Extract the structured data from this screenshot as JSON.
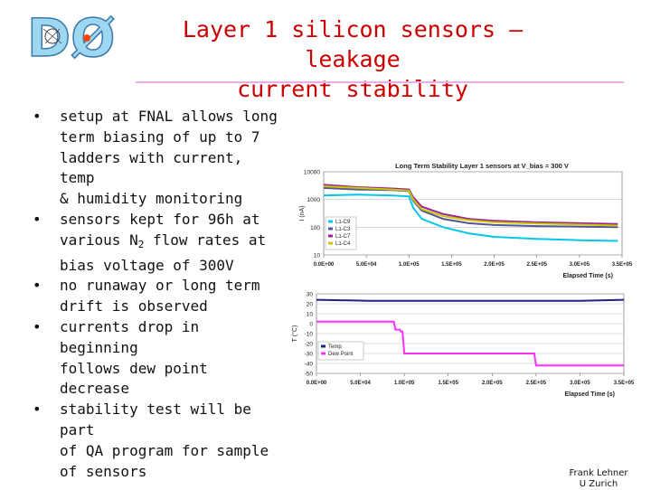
{
  "logo": {
    "text": "DØ"
  },
  "title": {
    "line1": "Layer 1 silicon sensors – leakage",
    "line2": "current stability"
  },
  "bullets": [
    {
      "lines": [
        "setup at FNAL allows long",
        "term biasing of up to 7",
        "ladders with current, temp",
        "& humidity monitoring"
      ]
    },
    {
      "lines": [
        "sensors kept for 96h at",
        "various N|2| flow rates at",
        "bias voltage of 300V"
      ]
    },
    {
      "lines": [
        "no runaway or long term",
        "drift is observed"
      ]
    },
    {
      "lines": [
        "currents drop in beginning",
        "follows dew point decrease"
      ]
    },
    {
      "lines": [
        "stability test will be part",
        "of QA program for sample",
        "of sensors"
      ]
    }
  ],
  "chart_data": [
    {
      "type": "line",
      "title": "Long Term Stability Layer 1 sensors at V_bias = 300 V",
      "xlabel": "Elapsed Time (s)",
      "ylabel": "I (nA)",
      "yscale": "log",
      "ylim": [
        10,
        10000
      ],
      "yticks": [
        "10",
        "100",
        "1000",
        "10000"
      ],
      "xlim": [
        0,
        350000
      ],
      "xticks": [
        "0.0E+00",
        "5.0E+04",
        "1.0E+05",
        "1.5E+05",
        "2.0E+05",
        "2.5E+05",
        "3.0E+05",
        "3.5E+05"
      ],
      "legend_position": "left",
      "series": [
        {
          "name": "L1-C9",
          "color": "#00c8e8",
          "points": [
            [
              0,
              1400
            ],
            [
              40000,
              1500
            ],
            [
              80000,
              1400
            ],
            [
              100000,
              1300
            ],
            [
              105000,
              500
            ],
            [
              115000,
              200
            ],
            [
              140000,
              100
            ],
            [
              170000,
              60
            ],
            [
              200000,
              45
            ],
            [
              250000,
              38
            ],
            [
              300000,
              34
            ],
            [
              345000,
              32
            ]
          ]
        },
        {
          "name": "L1-C3",
          "color": "#555599",
          "points": [
            [
              0,
              2600
            ],
            [
              40000,
              2300
            ],
            [
              80000,
              2200
            ],
            [
              100000,
              2000
            ],
            [
              105000,
              900
            ],
            [
              115000,
              400
            ],
            [
              140000,
              200
            ],
            [
              170000,
              140
            ],
            [
              200000,
              120
            ],
            [
              250000,
              110
            ],
            [
              300000,
              105
            ],
            [
              345000,
              100
            ]
          ]
        },
        {
          "name": "L1-C7",
          "color": "#a0209a",
          "points": [
            [
              0,
              3400
            ],
            [
              40000,
              2800
            ],
            [
              80000,
              2500
            ],
            [
              100000,
              2300
            ],
            [
              105000,
              1200
            ],
            [
              115000,
              550
            ],
            [
              140000,
              300
            ],
            [
              170000,
              200
            ],
            [
              200000,
              170
            ],
            [
              250000,
              150
            ],
            [
              300000,
              140
            ],
            [
              345000,
              130
            ]
          ]
        },
        {
          "name": "L1-C4",
          "color": "#c8c800",
          "points": [
            [
              0,
              3000
            ],
            [
              40000,
              2600
            ],
            [
              80000,
              2300
            ],
            [
              100000,
              2100
            ],
            [
              105000,
              1000
            ],
            [
              115000,
              450
            ],
            [
              140000,
              250
            ],
            [
              170000,
              180
            ],
            [
              200000,
              150
            ],
            [
              250000,
              135
            ],
            [
              300000,
              125
            ],
            [
              345000,
              115
            ]
          ]
        }
      ]
    },
    {
      "type": "line",
      "title": "",
      "xlabel": "Elapsed Time (s)",
      "ylabel": "T (°C)",
      "ylim": [
        -50,
        30
      ],
      "yticks": [
        "30",
        "20",
        "10",
        "0",
        "-10",
        "-20",
        "-30",
        "-40",
        "-50"
      ],
      "xlim": [
        0,
        350000
      ],
      "xticks": [
        "0.0E+00",
        "5.0E+04",
        "1.0E+05",
        "1.5E+05",
        "2.0E+05",
        "2.5E+05",
        "3.0E+05",
        "3.5E+05"
      ],
      "legend_position": "bottom-left",
      "series": [
        {
          "name": "Temp",
          "color": "#20208a",
          "points": [
            [
              0,
              24
            ],
            [
              60000,
              23
            ],
            [
              120000,
              23
            ],
            [
              180000,
              23
            ],
            [
              240000,
              23
            ],
            [
              300000,
              23
            ],
            [
              350000,
              24
            ]
          ]
        },
        {
          "name": "Dew Point",
          "color": "#ff30ff",
          "points": [
            [
              0,
              2
            ],
            [
              88000,
              2
            ],
            [
              90000,
              -6
            ],
            [
              95000,
              -6
            ],
            [
              96000,
              -8
            ],
            [
              98000,
              -8
            ],
            [
              100000,
              -30
            ],
            [
              248000,
              -30
            ],
            [
              250000,
              -42
            ],
            [
              350000,
              -42
            ]
          ]
        }
      ]
    }
  ],
  "credit": {
    "line1": "Frank Lehner",
    "line2": "U Zurich"
  }
}
